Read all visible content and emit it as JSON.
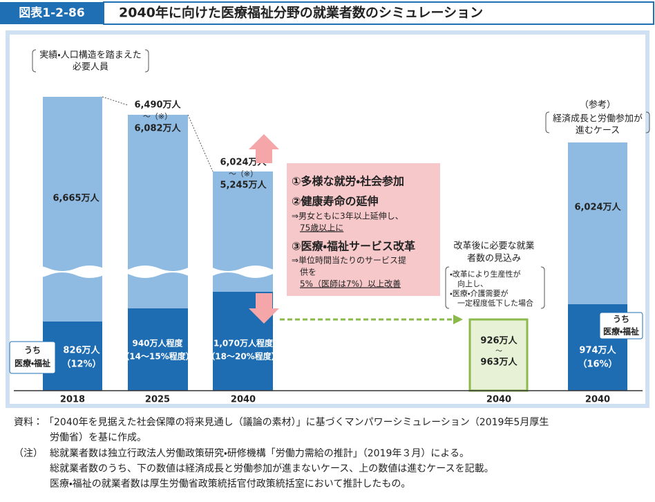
{
  "header": {
    "label": "図表1-2-86",
    "title": "2040年に向けた医療福祉分野の就業者数のシミュレーション"
  },
  "top_note": [
    "実績・人口構造を踏まえた",
    "必要人員"
  ],
  "bars": [
    {
      "year": "2018",
      "total": [
        "6,665万人"
      ],
      "medical": [
        "826万人",
        "（12%）"
      ]
    },
    {
      "year": "2025",
      "total": [
        "6,490万人",
        "〜（※）",
        "6,082万人"
      ],
      "medical": [
        "940万人程度",
        "（14〜15%程度）"
      ]
    },
    {
      "year": "2040",
      "total": [
        "6,024万人",
        "〜（※）",
        "5,245万人"
      ],
      "medical": [
        "1,070万人程度",
        "（18〜20%程度）"
      ]
    }
  ],
  "medical_label": [
    "うち",
    "医療・福祉"
  ],
  "reform": {
    "items": [
      {
        "title": "①多様な就労・社会参加",
        "lines": []
      },
      {
        "title": "②健康寿命の延伸",
        "lines": [
          "⇒男女ともに3年以上延伸し、",
          "75歳以上に"
        ]
      },
      {
        "title": "③医療・福祉サービス改革",
        "lines": [
          "⇒単位時間当たりのサービス提",
          "供を",
          "5%（医師は7%）以上改善"
        ]
      }
    ]
  },
  "projection": {
    "heading": [
      "改革後に必要な就業",
      "者数の見込み"
    ],
    "conditions": [
      "・改革により生産性が",
      "向上し、",
      "・医療・介護需要が",
      "一定程度低下した場合"
    ],
    "values": [
      "926万人",
      "〜",
      "963万人"
    ],
    "year": "2040"
  },
  "reference": {
    "heading": [
      "（参考）",
      "経済成長と労働参加が",
      "進むケース"
    ],
    "total": "6,024万人",
    "medical": [
      "974万人",
      "（16%）"
    ],
    "label": [
      "うち",
      "医療・福祉"
    ],
    "year": "2040"
  },
  "footnotes": {
    "source_label": "資料：",
    "source": [
      "「2040年を見据えた社会保障の将来見通し（議論の素材）」に基づくマンパワーシミュレーション（2019年5月厚生",
      "労働省）を基に作成。"
    ],
    "note_label": "（注）",
    "notes": [
      "総就業者数は独立行政法人労働政策研究・研修機構「労働力需給の推計」（2019年３月）による。",
      "総就業者数のうち、下の数値は経済成長と労働参加が進まないケース、上の数値は進むケースを記載。",
      "医療・福祉の就業者数は厚生労働省政策統括官付政策統括室において推計したもの。"
    ]
  }
}
